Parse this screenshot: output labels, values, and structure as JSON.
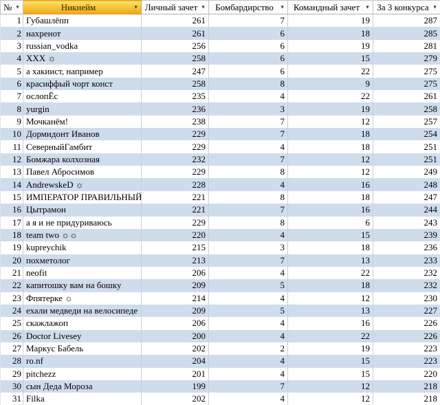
{
  "icons": {
    "filter_dropdown": "▼"
  },
  "colors": {
    "band_blue": "#cfdcec",
    "gridline": "#c6cfde",
    "nickname_header_top": "#fde06a",
    "nickname_header_bottom": "#efa617",
    "nickname_header_border": "#d99b2b"
  },
  "table": {
    "columns": [
      {
        "key": "num",
        "label": "№"
      },
      {
        "key": "nickname",
        "label": "Никнейм"
      },
      {
        "key": "personal",
        "label": "Личный зачет"
      },
      {
        "key": "bombing",
        "label": "Бомбардирство"
      },
      {
        "key": "team",
        "label": "Командный зачет"
      },
      {
        "key": "total",
        "label": "За 3 конкурса"
      }
    ],
    "rows": [
      {
        "num": 1,
        "nickname": "Губашлёпп",
        "personal": 261,
        "bombing": 7,
        "team": 19,
        "total": 287
      },
      {
        "num": 2,
        "nickname": "нахренот",
        "personal": 261,
        "bombing": 6,
        "team": 18,
        "total": 285
      },
      {
        "num": 3,
        "nickname": "russian_vodka",
        "personal": 256,
        "bombing": 6,
        "team": 19,
        "total": 281
      },
      {
        "num": 4,
        "nickname": "XXX ☼",
        "personal": 258,
        "bombing": 6,
        "team": 15,
        "total": 279
      },
      {
        "num": 5,
        "nickname": "а хакиист, например",
        "personal": 247,
        "bombing": 6,
        "team": 22,
        "total": 275
      },
      {
        "num": 6,
        "nickname": "красиффый чорт конст",
        "personal": 258,
        "bombing": 8,
        "team": 9,
        "total": 275
      },
      {
        "num": 7,
        "nickname": "ослопЁс",
        "personal": 235,
        "bombing": 4,
        "team": 22,
        "total": 261
      },
      {
        "num": 8,
        "nickname": "yurgin",
        "personal": 236,
        "bombing": 3,
        "team": 19,
        "total": 258
      },
      {
        "num": 9,
        "nickname": "Мочканём!",
        "personal": 238,
        "bombing": 7,
        "team": 12,
        "total": 257
      },
      {
        "num": 10,
        "nickname": "Дормидонт Иванов",
        "personal": 229,
        "bombing": 7,
        "team": 18,
        "total": 254
      },
      {
        "num": 11,
        "nickname": "СеверныйГамбит",
        "personal": 229,
        "bombing": 4,
        "team": 18,
        "total": 251
      },
      {
        "num": 12,
        "nickname": "Бомжара колхозная",
        "personal": 232,
        "bombing": 7,
        "team": 12,
        "total": 251
      },
      {
        "num": 13,
        "nickname": "Павел Абросимов",
        "personal": 229,
        "bombing": 8,
        "team": 12,
        "total": 249
      },
      {
        "num": 14,
        "nickname": "AndrewskeD ☼",
        "personal": 228,
        "bombing": 4,
        "team": 16,
        "total": 248
      },
      {
        "num": 15,
        "nickname": "ИМПЕРАТОР ПРАВИЛЬНЫЙ",
        "personal": 221,
        "bombing": 8,
        "team": 18,
        "total": 247
      },
      {
        "num": 16,
        "nickname": "Цытрамон",
        "personal": 221,
        "bombing": 7,
        "team": 16,
        "total": 244
      },
      {
        "num": 17,
        "nickname": "а я и не придуриваюсь",
        "personal": 229,
        "bombing": 8,
        "team": 6,
        "total": 243
      },
      {
        "num": 18,
        "nickname": "team two ☼☼",
        "personal": 220,
        "bombing": 4,
        "team": 15,
        "total": 239
      },
      {
        "num": 19,
        "nickname": "kupreychik",
        "personal": 215,
        "bombing": 3,
        "team": 18,
        "total": 236
      },
      {
        "num": 20,
        "nickname": "похметолог",
        "personal": 213,
        "bombing": 7,
        "team": 13,
        "total": 233
      },
      {
        "num": 21,
        "nickname": "neofit",
        "personal": 206,
        "bombing": 4,
        "team": 22,
        "total": 232
      },
      {
        "num": 22,
        "nickname": "капитошку вам на бошку",
        "personal": 209,
        "bombing": 5,
        "team": 18,
        "total": 232
      },
      {
        "num": 23,
        "nickname": "Фпятерке ☼",
        "personal": 214,
        "bombing": 4,
        "team": 12,
        "total": 230
      },
      {
        "num": 24,
        "nickname": "ехали медведи на велосипеде",
        "personal": 209,
        "bombing": 5,
        "team": 13,
        "total": 227
      },
      {
        "num": 25,
        "nickname": "скажлажоп",
        "personal": 206,
        "bombing": 4,
        "team": 16,
        "total": 226
      },
      {
        "num": 26,
        "nickname": "Doctor Livesey",
        "personal": 200,
        "bombing": 4,
        "team": 22,
        "total": 226
      },
      {
        "num": 27,
        "nickname": "Маркус Бабель",
        "personal": 202,
        "bombing": 2,
        "team": 19,
        "total": 223
      },
      {
        "num": 28,
        "nickname": "ro.nf",
        "personal": 204,
        "bombing": 4,
        "team": 15,
        "total": 223
      },
      {
        "num": 29,
        "nickname": "pitchezz",
        "personal": 201,
        "bombing": 4,
        "team": 15,
        "total": 220
      },
      {
        "num": 30,
        "nickname": "сын Деда Мороза",
        "personal": 199,
        "bombing": 7,
        "team": 12,
        "total": 218
      },
      {
        "num": 31,
        "nickname": "Filka",
        "personal": 202,
        "bombing": 4,
        "team": 12,
        "total": 218
      }
    ]
  }
}
